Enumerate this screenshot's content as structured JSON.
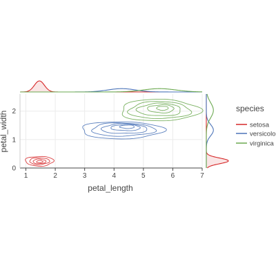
{
  "chart_data": {
    "type": "scatter",
    "subtype": "2d-density-contour-with-marginal-density",
    "xlabel": "petal_length",
    "ylabel": "petal_width",
    "xlim": [
      0.8,
      7.0
    ],
    "ylim": [
      0.0,
      2.6
    ],
    "x_ticks": [
      1,
      2,
      3,
      4,
      5,
      6,
      7
    ],
    "y_ticks": [
      0,
      1,
      2
    ],
    "grid": true,
    "legend": {
      "title": "species",
      "placement": "right"
    },
    "series": [
      {
        "name": "setosa",
        "color": "#d62728",
        "contours": [
          {
            "cx": 1.46,
            "cy": 0.24,
            "rx": 0.48,
            "ry": 0.17
          },
          {
            "cx": 1.46,
            "cy": 0.24,
            "rx": 0.34,
            "ry": 0.12
          },
          {
            "cx": 1.46,
            "cy": 0.23,
            "rx": 0.22,
            "ry": 0.08
          },
          {
            "cx": 1.47,
            "cy": 0.22,
            "rx": 0.11,
            "ry": 0.04
          }
        ],
        "marginal_x": {
          "mean": 1.46,
          "sd": 0.17
        },
        "marginal_y": {
          "mean": 0.25,
          "sd": 0.1
        }
      },
      {
        "name": "versicolor",
        "color": "#4a73b8",
        "contours": [
          {
            "cx": 4.26,
            "cy": 1.33,
            "rx": 1.4,
            "ry": 0.3
          },
          {
            "cx": 4.3,
            "cy": 1.35,
            "rx": 1.08,
            "ry": 0.23
          },
          {
            "cx": 4.35,
            "cy": 1.38,
            "rx": 0.78,
            "ry": 0.17
          },
          {
            "cx": 4.4,
            "cy": 1.42,
            "rx": 0.5,
            "ry": 0.11
          },
          {
            "cx": 4.45,
            "cy": 1.45,
            "rx": 0.25,
            "ry": 0.06
          }
        ],
        "marginal_x": {
          "mean": 4.26,
          "sd": 0.47
        },
        "marginal_y": {
          "mean": 1.33,
          "sd": 0.2
        }
      },
      {
        "name": "virginica",
        "color": "#6aa84f",
        "contours": [
          {
            "cx": 5.55,
            "cy": 2.03,
            "rx": 1.35,
            "ry": 0.38
          },
          {
            "cx": 5.55,
            "cy": 2.03,
            "rx": 1.05,
            "ry": 0.3
          },
          {
            "cx": 5.55,
            "cy": 2.05,
            "rx": 0.75,
            "ry": 0.22
          },
          {
            "cx": 5.6,
            "cy": 2.08,
            "rx": 0.45,
            "ry": 0.14
          },
          {
            "cx": 5.65,
            "cy": 2.1,
            "rx": 0.2,
            "ry": 0.07
          }
        ],
        "marginal_x": {
          "mean": 5.55,
          "sd": 0.55
        },
        "marginal_y": {
          "mean": 2.03,
          "sd": 0.27
        }
      }
    ]
  }
}
